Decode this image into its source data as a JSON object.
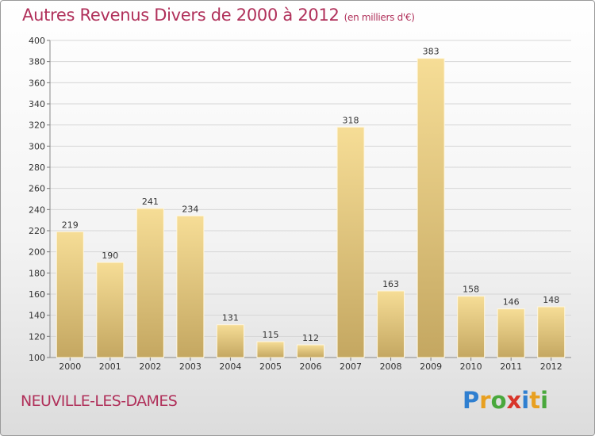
{
  "title": "Autres Revenus Divers de 2000 à 2012",
  "title_unit": "(en milliers d'€)",
  "place": "NEUVILLE-LES-DAMES",
  "logo": {
    "letters": [
      "P",
      "r",
      "o",
      "x",
      "i",
      "t",
      "i"
    ],
    "colors": [
      "#2f7fd0",
      "#e8a020",
      "#49a83c",
      "#d8352a",
      "#2f7fd0",
      "#e8a020",
      "#49a83c"
    ]
  },
  "colors": {
    "title": "#b0305a",
    "bar_light": "#f6dd96",
    "bar_dark": "#c4a761",
    "grid": "#d6d6d6"
  },
  "chart_data": {
    "type": "bar",
    "title": "Autres Revenus Divers de 2000 à 2012",
    "ylabel": "",
    "xlabel": "",
    "ylim": [
      100,
      400
    ],
    "yticks": [
      100,
      120,
      140,
      160,
      180,
      200,
      220,
      240,
      260,
      280,
      300,
      320,
      340,
      360,
      380,
      400
    ],
    "categories": [
      "2000",
      "2001",
      "2002",
      "2003",
      "2004",
      "2005",
      "2006",
      "2007",
      "2008",
      "2009",
      "2010",
      "2011",
      "2012"
    ],
    "values": [
      219,
      190,
      241,
      234,
      131,
      115,
      112,
      318,
      163,
      383,
      158,
      146,
      148
    ],
    "grid": true
  }
}
